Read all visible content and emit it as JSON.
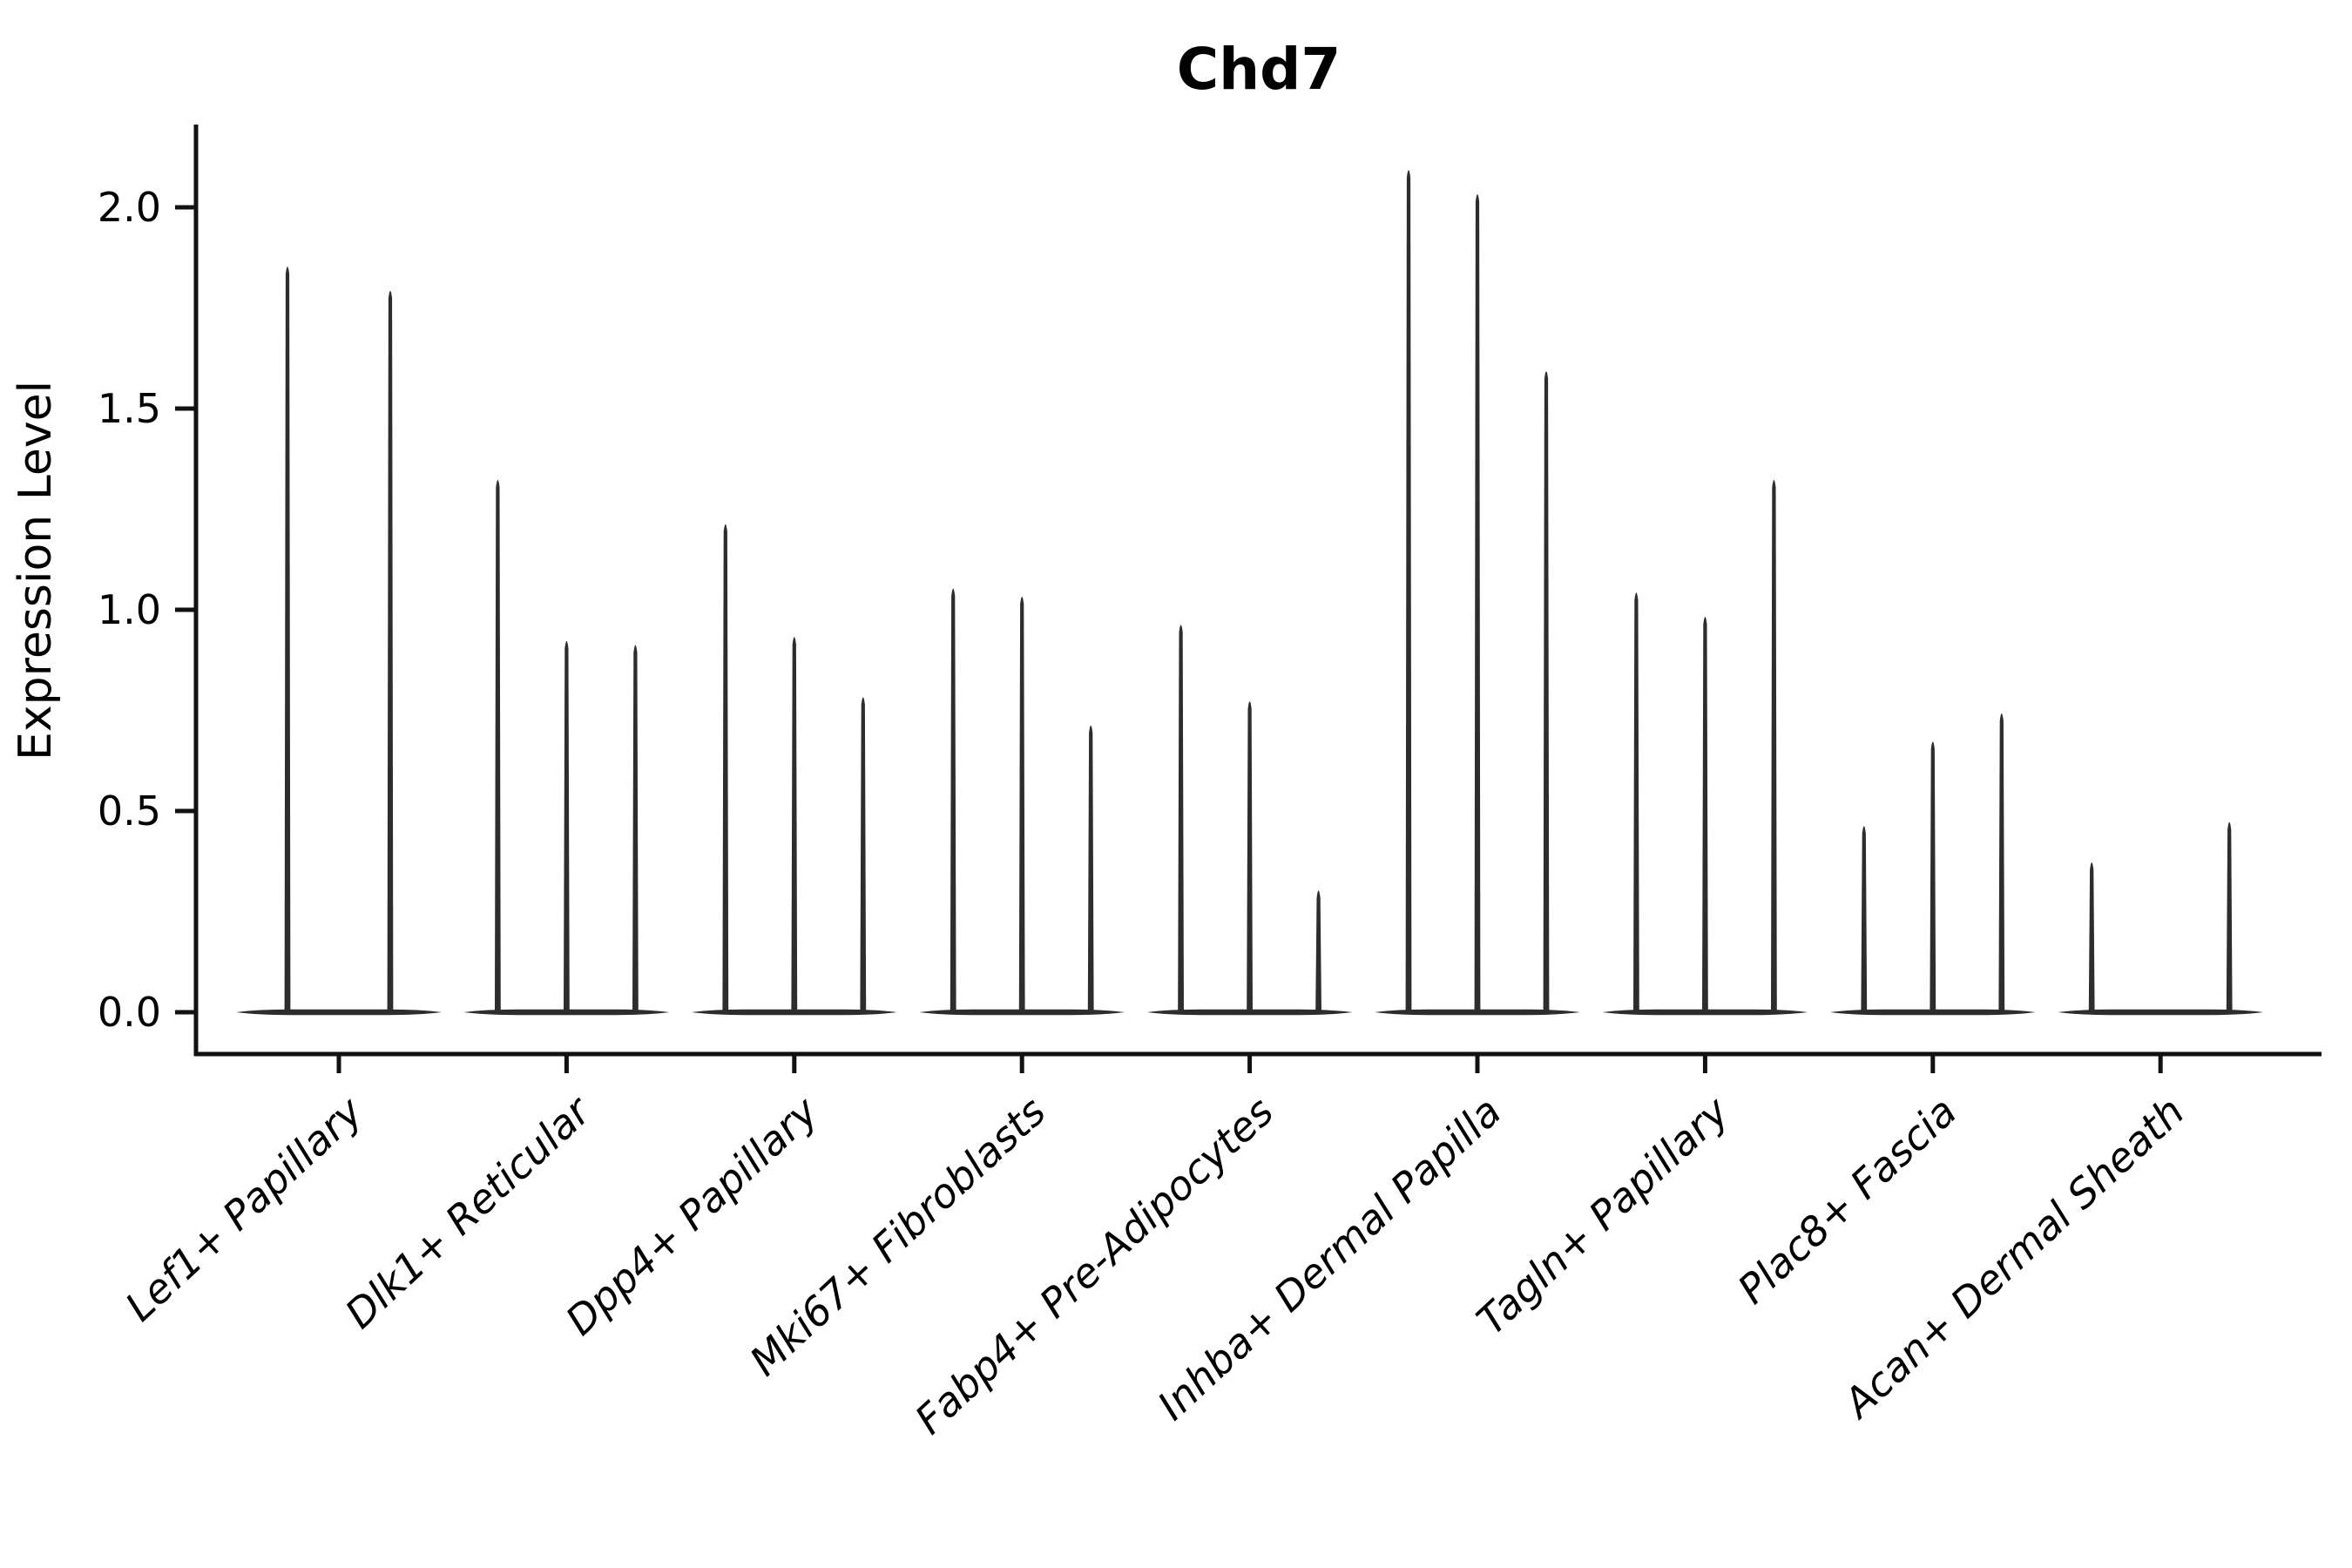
{
  "figure": {
    "background": "#ffffff",
    "violin_color": "#2d2d2d",
    "axis_color": "#111111",
    "text_color": "#000000"
  },
  "chart_data": {
    "type": "violin",
    "title": "Chd7",
    "ylabel": "Expression Level",
    "xlabel": "",
    "grid": false,
    "legend": "none",
    "ylim": [
      -0.1,
      2.2
    ],
    "y_ticks": [
      0.0,
      0.5,
      1.0,
      1.5,
      2.0
    ],
    "x_tick_rotation_deg": 45,
    "categories": [
      "Lef1+ Papillary",
      "Dlk1+ Reticular",
      "Dpp4+ Papillary",
      "Mki67+ Fibroblasts",
      "Fabp4+ Pre-Adipocytes",
      "Inhba+ Dermal Papilla",
      "Tagln+ Papillary",
      "Plac8+ Fascia",
      "Acan+ Dermal Sheath"
    ],
    "series": [
      {
        "category": "Lef1+ Papillary",
        "expression_peaks": [
          1.86,
          1.8
        ]
      },
      {
        "category": "Dlk1+ Reticular",
        "expression_peaks": [
          1.33,
          0.93,
          0.92
        ]
      },
      {
        "category": "Dpp4+ Papillary",
        "expression_peaks": [
          1.22,
          0.94,
          0.79
        ]
      },
      {
        "category": "Mki67+ Fibroblasts",
        "expression_peaks": [
          1.06,
          1.04,
          0.72
        ]
      },
      {
        "category": "Fabp4+ Pre-Adipocytes",
        "expression_peaks": [
          0.97,
          0.78,
          0.31
        ]
      },
      {
        "category": "Inhba+ Dermal Papilla",
        "expression_peaks": [
          2.1,
          2.04,
          1.6
        ]
      },
      {
        "category": "Tagln+ Papillary",
        "expression_peaks": [
          1.05,
          0.99,
          1.33
        ]
      },
      {
        "category": "Plac8+ Fascia",
        "expression_peaks": [
          0.47,
          0.68,
          0.75
        ]
      },
      {
        "category": "Acan+ Dermal Sheath",
        "expression_peaks": [
          0.38,
          0.0,
          0.48
        ]
      }
    ]
  }
}
